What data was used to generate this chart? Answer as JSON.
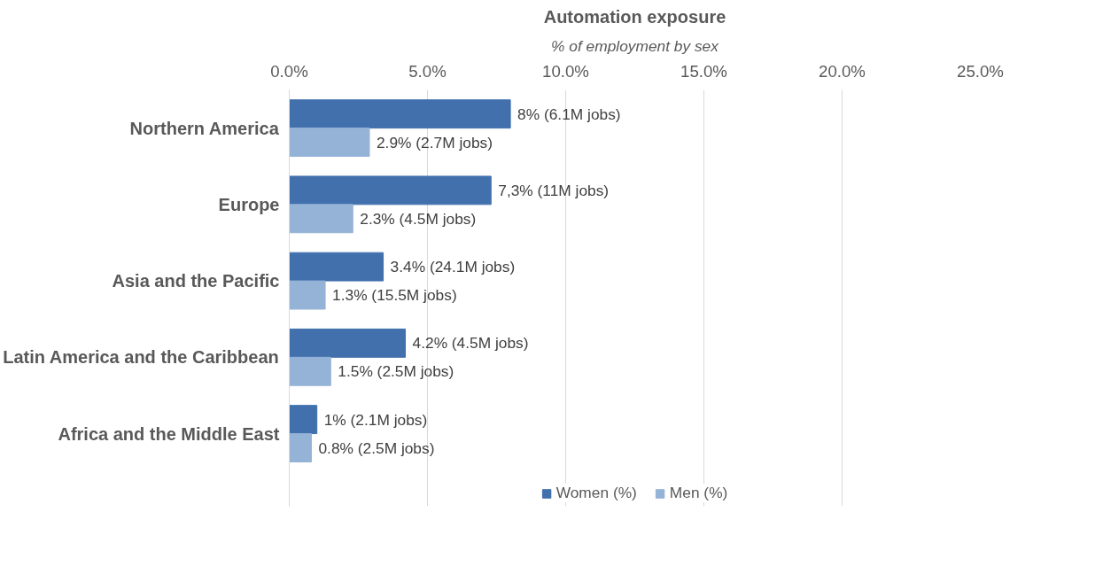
{
  "chart_data": {
    "type": "bar",
    "orientation": "horizontal",
    "title": "Automation exposure",
    "subtitle": "% of employment by sex",
    "categories": [
      "Northern America",
      "Europe",
      "Asia and the Pacific",
      "Latin America and the Caribbean",
      "Africa and the Middle East"
    ],
    "series": [
      {
        "name": "Women (%)",
        "color": "#4170ad",
        "values": [
          8,
          7.3,
          3.4,
          4.2,
          1
        ],
        "value_labels": [
          "8% (6.1M jobs)",
          "7,3% (11M jobs)",
          "3.4% (24.1M jobs)",
          "4.2% (4.5M jobs)",
          "1% (2.1M jobs)"
        ]
      },
      {
        "name": "Men (%)",
        "color": "#95b3d7",
        "values": [
          2.9,
          2.3,
          1.3,
          1.5,
          0.8
        ],
        "value_labels": [
          "2.9% (2.7M jobs)",
          "2.3% (4.5M jobs)",
          "1.3% (15.5M jobs)",
          "1.5% (2.5M jobs)",
          "0.8% (2.5M jobs)"
        ]
      }
    ],
    "xlim": [
      0,
      25
    ],
    "xticks": [
      {
        "value": 0,
        "label": "0.0%"
      },
      {
        "value": 5,
        "label": "5.0%"
      },
      {
        "value": 10,
        "label": "10.0%"
      },
      {
        "value": 15,
        "label": "15.0%"
      },
      {
        "value": 20,
        "label": "20.0%"
      },
      {
        "value": 25,
        "label": "25.0%"
      }
    ],
    "grid": "x",
    "legend": "bottom"
  }
}
